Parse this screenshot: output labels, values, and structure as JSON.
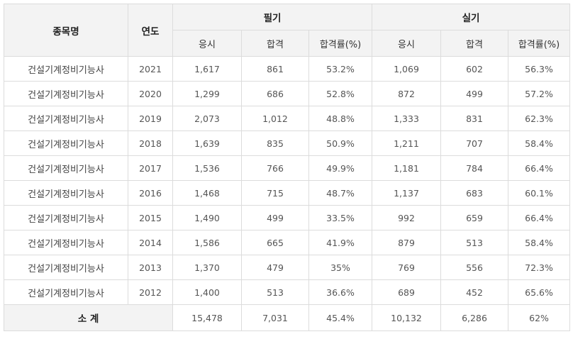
{
  "table": {
    "header": {
      "subject": "종목명",
      "year": "연도",
      "written": "필기",
      "practical": "실기",
      "sub_columns": [
        "응시",
        "합격",
        "합격률(%)",
        "응시",
        "합격",
        "합격률(%)"
      ]
    },
    "rows": [
      [
        "건설기계정비기능사",
        "2021",
        "1,617",
        "861",
        "53.2%",
        "1,069",
        "602",
        "56.3%"
      ],
      [
        "건설기계정비기능사",
        "2020",
        "1,299",
        "686",
        "52.8%",
        "872",
        "499",
        "57.2%"
      ],
      [
        "건설기계정비기능사",
        "2019",
        "2,073",
        "1,012",
        "48.8%",
        "1,333",
        "831",
        "62.3%"
      ],
      [
        "건설기계정비기능사",
        "2018",
        "1,639",
        "835",
        "50.9%",
        "1,211",
        "707",
        "58.4%"
      ],
      [
        "건설기계정비기능사",
        "2017",
        "1,536",
        "766",
        "49.9%",
        "1,181",
        "784",
        "66.4%"
      ],
      [
        "건설기계정비기능사",
        "2016",
        "1,468",
        "715",
        "48.7%",
        "1,137",
        "683",
        "60.1%"
      ],
      [
        "건설기계정비기능사",
        "2015",
        "1,490",
        "499",
        "33.5%",
        "992",
        "659",
        "66.4%"
      ],
      [
        "건설기계정비기능사",
        "2014",
        "1,586",
        "665",
        "41.9%",
        "879",
        "513",
        "58.4%"
      ],
      [
        "건설기계정비기능사",
        "2013",
        "1,370",
        "479",
        "35%",
        "769",
        "556",
        "72.3%"
      ],
      [
        "건설기계정비기능사",
        "2012",
        "1,400",
        "513",
        "36.6%",
        "689",
        "452",
        "65.6%"
      ]
    ],
    "total": {
      "label": "소 계",
      "values": [
        "15,478",
        "7,031",
        "45.4%",
        "10,132",
        "6,286",
        "62%"
      ]
    }
  }
}
